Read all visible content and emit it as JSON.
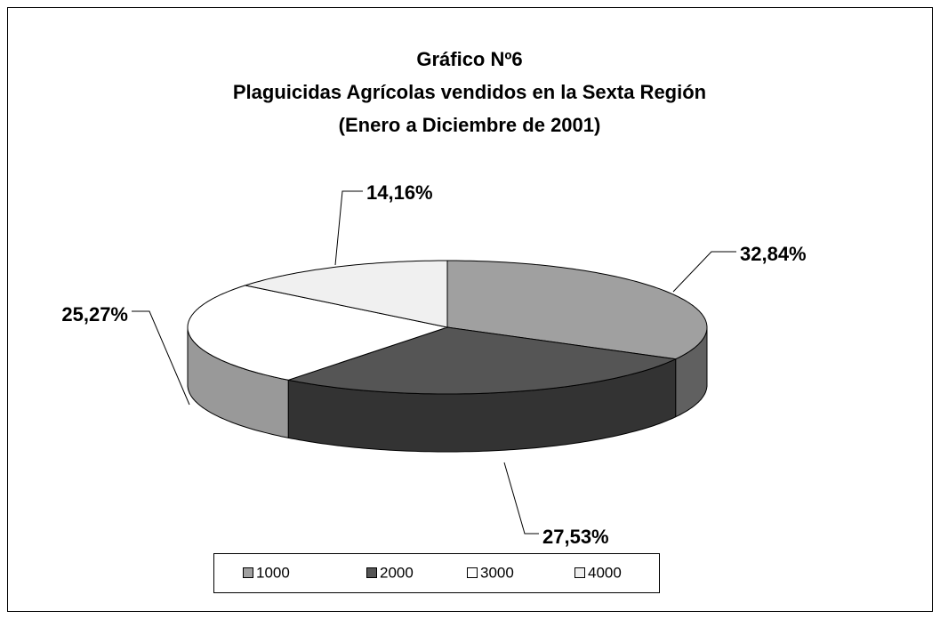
{
  "chart_data": {
    "type": "pie3d",
    "title": [
      "Gráfico Nº6",
      "Plaguicidas Agrícolas vendidos en la Sexta Región",
      "(Enero a Diciembre de 2001)"
    ],
    "categories": [
      "1000",
      "2000",
      "3000",
      "4000"
    ],
    "values": [
      32.84,
      27.53,
      25.27,
      14.16
    ],
    "value_labels": [
      "32,84%",
      "27,53%",
      "25,27%",
      "14,16%"
    ],
    "colors": [
      "#a0a0a0",
      "#555555",
      "#ffffff",
      "#f0f0f0"
    ],
    "legend": "bottom"
  }
}
